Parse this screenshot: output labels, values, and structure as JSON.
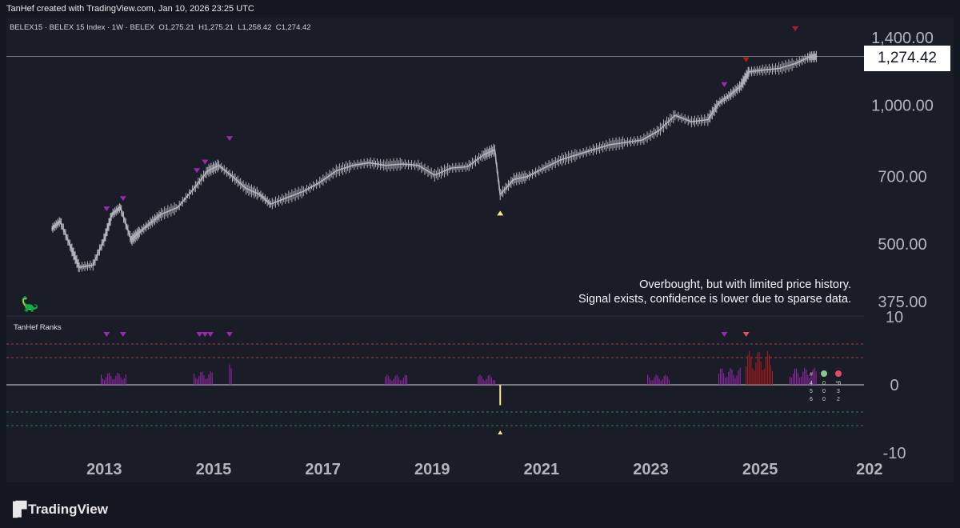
{
  "header": {
    "attribution": "TanHef created with TradingView.com, Jan 10, 2026 23:25 UTC"
  },
  "legend": {
    "symbol": "BELEX15 · BELEX 15 Index · 1W · BELEX",
    "open": "O1,275.21",
    "high": "H1,275.21",
    "low": "L1,258.42",
    "close": "C1,274.42"
  },
  "last_price": "1,274.42",
  "annotation": {
    "line1": "Overbought, but with limited price history.",
    "line2": "Signal exists, confidence is lower due to sparse data."
  },
  "indicator": {
    "title": "TanHef Ranks"
  },
  "rank_table": {
    "header": [
      "#",
      "",
      ""
    ],
    "rows": [
      [
        "4",
        "0",
        "*6"
      ],
      [
        "5",
        "0",
        "3"
      ],
      [
        "6",
        "0",
        "2"
      ]
    ],
    "colors": [
      "#8bc48a",
      "#e84a5f"
    ]
  },
  "footer": {
    "brand": "TradingView"
  },
  "colors": {
    "purple": "#9c27b0",
    "red": "#b71c1c",
    "yellow": "#ffe58a",
    "candles": "#b2b5be"
  },
  "chart_data": {
    "type": "line",
    "title": "",
    "x_ticks": [
      "2013",
      "2015",
      "2017",
      "2019",
      "2021",
      "2023",
      "2025",
      "202"
    ],
    "y_ticks": [
      "1,400.00",
      "1,000.00",
      "700.00",
      "500.00",
      "375.00"
    ],
    "y_scale": "log",
    "ylim": [
      375,
      1400
    ],
    "series": [
      {
        "x": [
          2012.0,
          2012.15,
          2012.35,
          2012.5,
          2012.75,
          2012.95,
          2013.1,
          2013.25,
          2013.45,
          2013.6,
          2013.8,
          2014.0,
          2014.3,
          2014.6,
          2014.85,
          2015.05,
          2015.3,
          2015.55,
          2015.8,
          2016.0,
          2016.3,
          2016.6,
          2016.9,
          2017.2,
          2017.5,
          2017.8,
          2018.1,
          2018.4,
          2018.7,
          2019.0,
          2019.3,
          2019.6,
          2019.9,
          2020.1,
          2020.2,
          2020.45,
          2020.7,
          2021.0,
          2021.3,
          2021.6,
          2021.9,
          2022.2,
          2022.5,
          2022.8,
          2023.1,
          2023.4,
          2023.7,
          2024.0,
          2024.2,
          2024.4,
          2024.6,
          2024.75,
          2025.0,
          2025.3,
          2025.6,
          2025.85,
          2026.0
        ],
        "y": [
          540,
          560,
          490,
          445,
          450,
          510,
          580,
          600,
          510,
          530,
          555,
          580,
          600,
          660,
          720,
          740,
          700,
          660,
          640,
          610,
          630,
          650,
          680,
          720,
          740,
          750,
          740,
          745,
          740,
          705,
          730,
          735,
          780,
          800,
          640,
          690,
          700,
          730,
          760,
          780,
          800,
          820,
          830,
          840,
          880,
          950,
          920,
          930,
          1010,
          1050,
          1100,
          1180,
          1190,
          1200,
          1230,
          1270,
          1274
        ]
      }
    ],
    "signals": [
      {
        "x": 2013.0,
        "y": 570,
        "kind": "purple-down"
      },
      {
        "x": 2013.3,
        "y": 600,
        "kind": "purple-down"
      },
      {
        "x": 2014.65,
        "y": 690,
        "kind": "purple-down"
      },
      {
        "x": 2014.8,
        "y": 720,
        "kind": "purple-down"
      },
      {
        "x": 2015.25,
        "y": 810,
        "kind": "purple-down"
      },
      {
        "x": 2020.2,
        "y": 595,
        "kind": "yellow-up"
      },
      {
        "x": 2024.3,
        "y": 1060,
        "kind": "purple-down"
      },
      {
        "x": 2024.7,
        "y": 1200,
        "kind": "red-down"
      },
      {
        "x": 2025.6,
        "y": 1400,
        "kind": "red-down"
      }
    ],
    "indicator_yticks": [
      "10",
      "0",
      "-10"
    ],
    "indicator_ylim": [
      -10,
      10
    ]
  }
}
